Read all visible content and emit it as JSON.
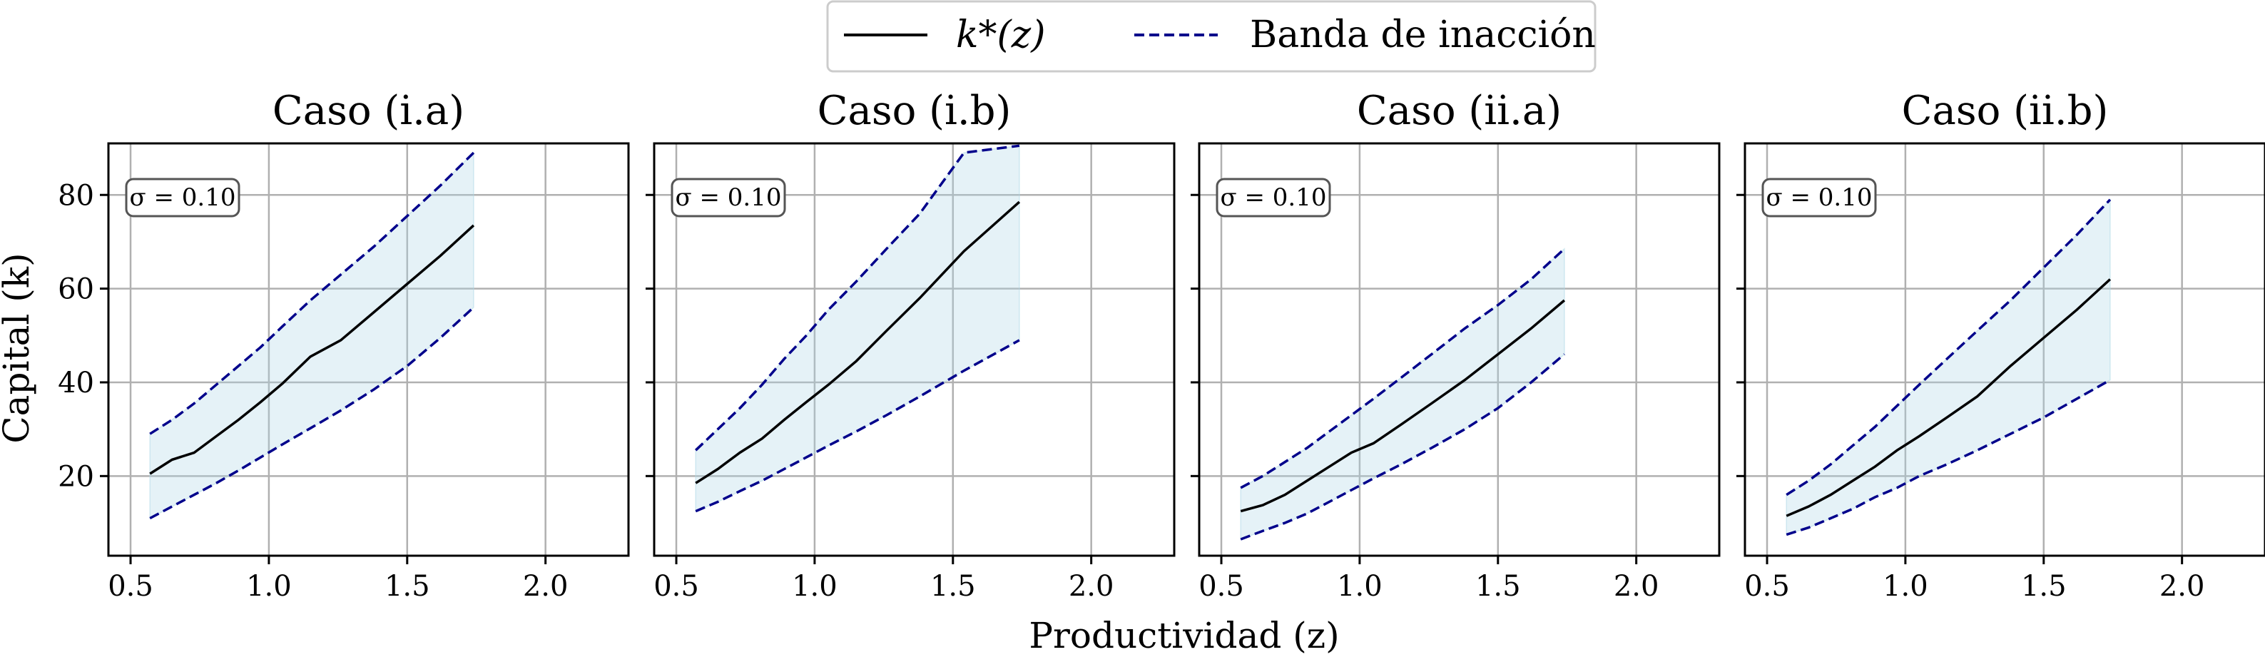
{
  "legend": {
    "kstar_label": "k*(z)",
    "band_label": "Banda de inacción"
  },
  "axes": {
    "xlabel": "Productividad (z)",
    "ylabel": "Capital (k)"
  },
  "colors": {
    "kstar": "#000000",
    "band": "#00008b",
    "band_fill": "#add8e6",
    "grid": "#b0b0b0"
  },
  "chart_data": [
    {
      "type": "line",
      "title": "Caso (i.a)",
      "annotation": "σ = 0.10",
      "x": [
        0.57,
        0.65,
        0.73,
        0.81,
        0.89,
        0.97,
        1.05,
        1.15,
        1.26,
        1.38,
        1.5,
        1.62,
        1.74
      ],
      "series": [
        {
          "name": "k*(z)",
          "values": [
            20.5,
            23.5,
            25.0,
            28.5,
            32.0,
            35.8,
            39.8,
            45.5,
            49.0,
            55.0,
            61.0,
            67.0,
            73.5
          ]
        },
        {
          "name": "Banda de inacción (superior)",
          "values": [
            29.0,
            32.0,
            35.5,
            39.5,
            43.5,
            47.5,
            52.0,
            57.5,
            63.0,
            69.0,
            75.5,
            82.0,
            89.0
          ]
        },
        {
          "name": "Banda de inacción (inferior)",
          "values": [
            11.0,
            13.5,
            16.0,
            18.5,
            21.2,
            24.0,
            26.8,
            30.2,
            34.0,
            38.5,
            43.5,
            49.5,
            56.0
          ]
        }
      ],
      "xticks": [
        "0.5",
        "1.0",
        "1.5",
        "2.0"
      ],
      "yticks": [
        "20",
        "40",
        "60",
        "80"
      ],
      "xlim": [
        0.42,
        2.3
      ],
      "ylim": [
        3,
        91
      ]
    },
    {
      "type": "line",
      "title": "Caso (i.b)",
      "annotation": "σ = 0.10",
      "x": [
        0.57,
        0.65,
        0.73,
        0.81,
        0.89,
        0.97,
        1.05,
        1.15,
        1.26,
        1.38,
        1.54,
        1.74
      ],
      "series": [
        {
          "name": "k*(z)",
          "values": [
            18.5,
            21.5,
            25.0,
            28.0,
            32.0,
            35.8,
            39.5,
            44.5,
            51.0,
            58.0,
            68.0,
            78.5
          ]
        },
        {
          "name": "Banda de inacción (superior)",
          "values": [
            25.5,
            30.0,
            34.5,
            39.5,
            45.0,
            50.0,
            55.5,
            61.5,
            68.5,
            76.0,
            89.0,
            90.5
          ]
        },
        {
          "name": "Banda de inacción (inferior)",
          "values": [
            12.5,
            14.5,
            16.8,
            19.0,
            21.5,
            24.0,
            26.5,
            29.5,
            33.0,
            37.0,
            42.5,
            49.0
          ]
        }
      ],
      "xticks": [
        "0.5",
        "1.0",
        "1.5",
        "2.0"
      ],
      "yticks": [
        "20",
        "40",
        "60",
        "80"
      ],
      "xlim": [
        0.42,
        2.3
      ],
      "ylim": [
        3,
        91
      ]
    },
    {
      "type": "line",
      "title": "Caso (ii.a)",
      "annotation": "σ = 0.10",
      "x": [
        0.57,
        0.65,
        0.73,
        0.81,
        0.89,
        0.97,
        1.05,
        1.15,
        1.26,
        1.38,
        1.5,
        1.62,
        1.74
      ],
      "series": [
        {
          "name": "k*(z)",
          "values": [
            12.5,
            13.8,
            16.0,
            19.0,
            22.0,
            25.0,
            27.0,
            31.0,
            35.5,
            40.5,
            46.0,
            51.5,
            57.5
          ]
        },
        {
          "name": "Banda de inacción (superior)",
          "values": [
            17.5,
            20.0,
            23.0,
            26.0,
            29.5,
            33.0,
            36.5,
            41.0,
            46.0,
            51.5,
            56.5,
            62.0,
            68.5
          ]
        },
        {
          "name": "Banda de inacción (inferior)",
          "values": [
            6.5,
            8.3,
            10.0,
            12.0,
            14.5,
            17.0,
            19.5,
            22.5,
            26.0,
            30.0,
            34.5,
            40.0,
            46.0
          ]
        }
      ],
      "xticks": [
        "0.5",
        "1.0",
        "1.5",
        "2.0"
      ],
      "yticks": [
        "20",
        "40",
        "60",
        "80"
      ],
      "xlim": [
        0.42,
        2.3
      ],
      "ylim": [
        3,
        91
      ]
    },
    {
      "type": "line",
      "title": "Caso (ii.b)",
      "annotation": "σ = 0.10",
      "x": [
        0.57,
        0.65,
        0.73,
        0.81,
        0.89,
        0.97,
        1.05,
        1.15,
        1.26,
        1.38,
        1.5,
        1.62,
        1.74
      ],
      "series": [
        {
          "name": "k*(z)",
          "values": [
            11.5,
            13.5,
            16.0,
            19.0,
            22.0,
            25.5,
            28.5,
            32.5,
            37.0,
            43.5,
            49.5,
            55.5,
            62.0
          ]
        },
        {
          "name": "Banda de inacción (superior)",
          "values": [
            16.0,
            19.0,
            22.5,
            26.5,
            30.5,
            35.0,
            39.5,
            45.0,
            51.0,
            57.5,
            64.5,
            71.5,
            79.0
          ]
        },
        {
          "name": "Banda de inacción (inferior)",
          "values": [
            7.5,
            9.0,
            11.0,
            13.0,
            15.5,
            17.5,
            20.0,
            22.5,
            25.5,
            29.0,
            32.5,
            36.5,
            40.5
          ]
        }
      ],
      "xticks": [
        "0.5",
        "1.0",
        "1.5",
        "2.0"
      ],
      "yticks": [
        "20",
        "40",
        "60",
        "80"
      ],
      "xlim": [
        0.42,
        2.3
      ],
      "ylim": [
        3,
        91
      ]
    }
  ]
}
